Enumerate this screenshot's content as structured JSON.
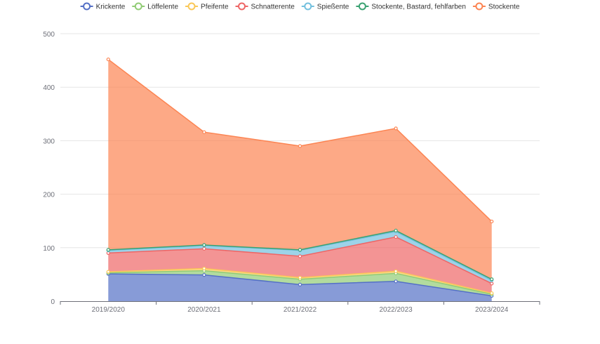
{
  "chart_data": {
    "type": "area",
    "stacked": true,
    "categories": [
      "2019/2020",
      "2020/2021",
      "2021/2022",
      "2022/2023",
      "2023/2024"
    ],
    "ylim": [
      0,
      500
    ],
    "yticks": [
      0,
      100,
      200,
      300,
      400,
      500
    ],
    "grid": true,
    "legend": "top",
    "series": [
      {
        "name": "Krickente",
        "color": "#5470c6",
        "values": [
          51,
          49,
          31,
          37,
          10
        ]
      },
      {
        "name": "Löffelente",
        "color": "#91cc75",
        "values": [
          2,
          8,
          10,
          15,
          3
        ]
      },
      {
        "name": "Pfeifente",
        "color": "#fac858",
        "values": [
          2,
          4,
          3,
          4,
          2
        ]
      },
      {
        "name": "Schnatterente",
        "color": "#ee6666",
        "values": [
          35,
          37,
          40,
          64,
          18
        ]
      },
      {
        "name": "Spießente",
        "color": "#73c0de",
        "values": [
          5,
          6,
          11,
          10,
          6
        ]
      },
      {
        "name": "Stockente, Bastard, fehlfarben",
        "color": "#3ba272",
        "values": [
          1,
          1,
          1,
          2,
          2
        ]
      },
      {
        "name": "Stockente",
        "color": "#fc8452",
        "values": [
          356,
          211,
          194,
          191,
          108
        ]
      }
    ]
  }
}
